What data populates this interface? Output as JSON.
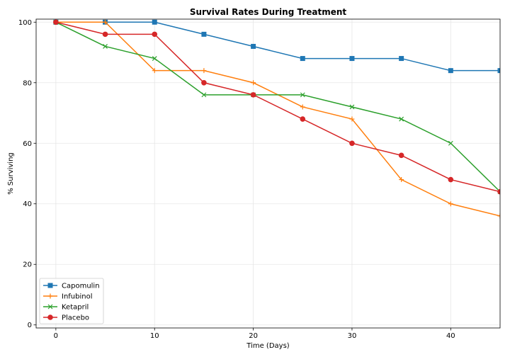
{
  "chart_data": {
    "type": "line",
    "title": "Survival Rates During Treatment",
    "xlabel": "Time (Days)",
    "ylabel": "% Surviving",
    "xlim": [
      -2,
      45
    ],
    "ylim": [
      -1,
      101
    ],
    "xticks": [
      0,
      10,
      20,
      30,
      40
    ],
    "yticks": [
      0,
      20,
      40,
      60,
      80,
      100
    ],
    "grid": true,
    "legend_position": "bottom-left",
    "x": [
      0,
      5,
      10,
      15,
      20,
      25,
      30,
      35,
      40,
      45
    ],
    "series": [
      {
        "name": "Capomulin",
        "color": "#1f77b4",
        "marker": "square",
        "values": [
          100,
          100,
          100,
          96,
          92,
          88,
          88,
          88,
          84,
          84
        ]
      },
      {
        "name": "Infubinol",
        "color": "#ff7f0e",
        "marker": "plus",
        "values": [
          100,
          100,
          84,
          84,
          80,
          72,
          68,
          48,
          40,
          36
        ]
      },
      {
        "name": "Ketapril",
        "color": "#2ca02c",
        "marker": "x",
        "values": [
          100,
          92,
          88,
          76,
          76,
          76,
          72,
          68,
          60,
          44
        ]
      },
      {
        "name": "Placebo",
        "color": "#d62728",
        "marker": "circle",
        "values": [
          100,
          96,
          96,
          80,
          76,
          68,
          60,
          56,
          48,
          44
        ]
      }
    ]
  }
}
